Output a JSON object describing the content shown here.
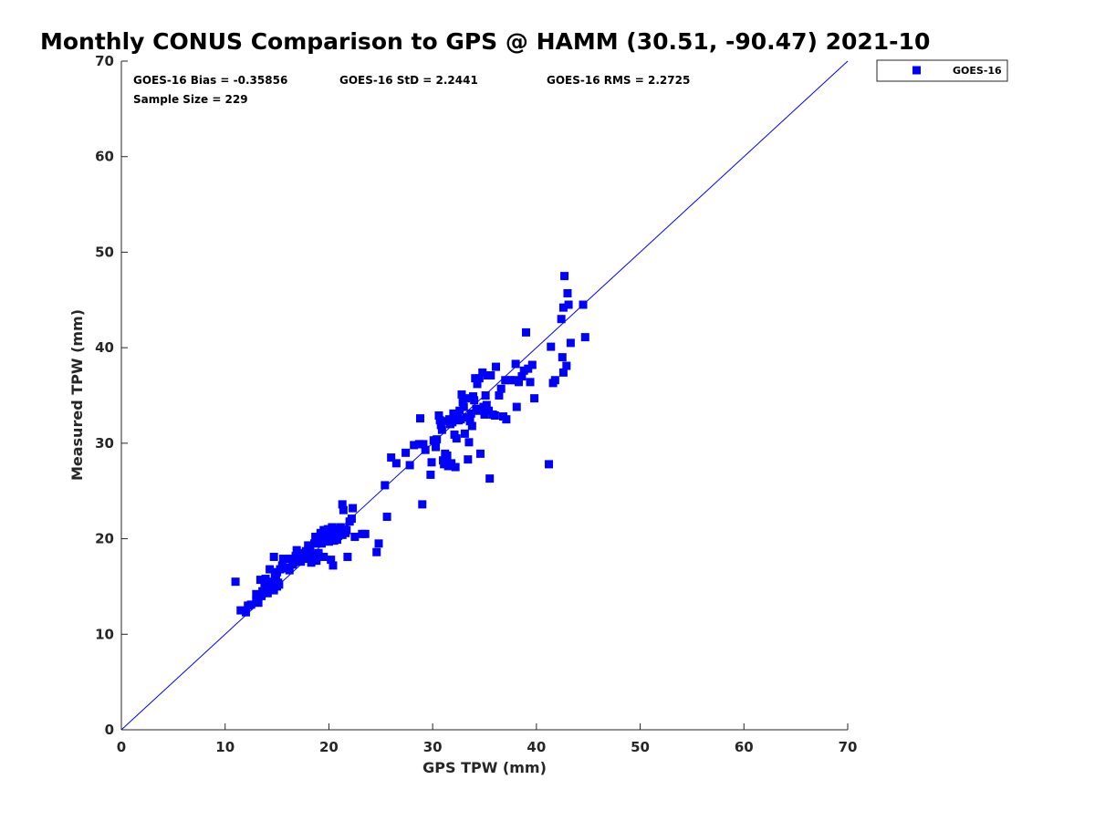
{
  "chart_data": {
    "type": "scatter",
    "title": "Monthly CONUS Comparison to GPS @ HAMM (30.51, -90.47) 2021-10",
    "xlabel": "GPS TPW (mm)",
    "ylabel": "Measured TPW (mm)",
    "xlim": [
      0,
      70
    ],
    "ylim": [
      0,
      70
    ],
    "xticks": [
      0,
      10,
      20,
      30,
      40,
      50,
      60,
      70
    ],
    "yticks": [
      0,
      10,
      20,
      30,
      40,
      50,
      60,
      70
    ],
    "grid": false,
    "legend_position": "top-right, outside plot",
    "reference_line": {
      "x": [
        0,
        70
      ],
      "y": [
        0,
        70
      ],
      "color": "#0000ff"
    },
    "stats": {
      "bias": "GOES-16 Bias = -0.35856",
      "std": "GOES-16 StD = 2.2441",
      "rms": "GOES-16 RMS = 2.2725",
      "sample_size": "Sample Size = 229"
    },
    "series": [
      {
        "name": "GOES-16",
        "color": "#0000ff",
        "marker": "square",
        "points": [
          [
            11.0,
            15.5
          ],
          [
            11.5,
            12.5
          ],
          [
            12.0,
            12.3
          ],
          [
            12.2,
            13.0
          ],
          [
            12.5,
            13.1
          ],
          [
            13.0,
            13.5
          ],
          [
            13.0,
            14.2
          ],
          [
            13.2,
            13.3
          ],
          [
            13.4,
            15.7
          ],
          [
            13.5,
            14.0
          ],
          [
            13.6,
            14.5
          ],
          [
            13.8,
            15.2
          ],
          [
            13.9,
            15.8
          ],
          [
            14.0,
            14.5
          ],
          [
            14.1,
            14.3
          ],
          [
            14.3,
            15.5
          ],
          [
            14.3,
            16.8
          ],
          [
            14.5,
            14.8
          ],
          [
            14.6,
            15.2
          ],
          [
            14.7,
            14.6
          ],
          [
            14.7,
            18.1
          ],
          [
            14.8,
            16.2
          ],
          [
            14.9,
            15.8
          ],
          [
            15.0,
            15.0
          ],
          [
            15.0,
            16.5
          ],
          [
            15.1,
            15.4
          ],
          [
            15.2,
            15.2
          ],
          [
            15.3,
            16.8
          ],
          [
            15.5,
            17.2
          ],
          [
            15.6,
            17.9
          ],
          [
            15.7,
            16.9
          ],
          [
            16.0,
            17.0
          ],
          [
            16.2,
            16.7
          ],
          [
            16.3,
            17.9
          ],
          [
            16.5,
            17.3
          ],
          [
            16.6,
            17.5
          ],
          [
            16.8,
            18.2
          ],
          [
            16.9,
            18.8
          ],
          [
            17.0,
            17.8
          ],
          [
            17.2,
            18.5
          ],
          [
            17.3,
            17.6
          ],
          [
            17.5,
            18.3
          ],
          [
            17.6,
            17.9
          ],
          [
            17.8,
            18.7
          ],
          [
            18.0,
            19.3
          ],
          [
            18.1,
            18.0
          ],
          [
            18.2,
            19.0
          ],
          [
            18.3,
            17.5
          ],
          [
            18.5,
            18.3
          ],
          [
            18.6,
            19.5
          ],
          [
            18.7,
            20.2
          ],
          [
            18.8,
            17.7
          ],
          [
            19.0,
            18.5
          ],
          [
            19.0,
            19.8
          ],
          [
            19.2,
            20.6
          ],
          [
            19.3,
            19.5
          ],
          [
            19.5,
            18.1
          ],
          [
            19.5,
            20.9
          ],
          [
            19.6,
            20.0
          ],
          [
            19.8,
            20.4
          ],
          [
            19.9,
            21.0
          ],
          [
            20.0,
            19.7
          ],
          [
            20.1,
            20.6
          ],
          [
            20.2,
            17.8
          ],
          [
            20.3,
            21.2
          ],
          [
            20.4,
            17.2
          ],
          [
            20.5,
            19.8
          ],
          [
            20.6,
            20.1
          ],
          [
            20.7,
            21.0
          ],
          [
            20.8,
            19.9
          ],
          [
            20.9,
            20.3
          ],
          [
            21.0,
            20.5
          ],
          [
            21.1,
            21.2
          ],
          [
            21.2,
            20.8
          ],
          [
            21.3,
            20.4
          ],
          [
            21.3,
            23.6
          ],
          [
            21.4,
            23.0
          ],
          [
            21.5,
            21.0
          ],
          [
            21.6,
            20.6
          ],
          [
            21.7,
            20.9
          ],
          [
            21.8,
            18.1
          ],
          [
            22.0,
            21.8
          ],
          [
            22.2,
            22.1
          ],
          [
            22.3,
            23.2
          ],
          [
            22.5,
            20.2
          ],
          [
            23.2,
            20.5
          ],
          [
            23.5,
            20.5
          ],
          [
            24.6,
            18.6
          ],
          [
            24.8,
            19.5
          ],
          [
            25.4,
            25.6
          ],
          [
            25.6,
            22.3
          ],
          [
            26.0,
            28.5
          ],
          [
            26.5,
            27.9
          ],
          [
            27.4,
            29.0
          ],
          [
            27.8,
            27.7
          ],
          [
            28.2,
            29.8
          ],
          [
            28.7,
            29.9
          ],
          [
            28.8,
            32.6
          ],
          [
            29.0,
            23.6
          ],
          [
            29.1,
            29.9
          ],
          [
            29.3,
            29.3
          ],
          [
            29.8,
            26.7
          ],
          [
            29.9,
            28.0
          ],
          [
            30.1,
            30.3
          ],
          [
            30.3,
            29.6
          ],
          [
            30.4,
            30.4
          ],
          [
            30.6,
            32.9
          ],
          [
            30.7,
            32.4
          ],
          [
            30.8,
            31.9
          ],
          [
            30.9,
            31.4
          ],
          [
            31.0,
            28.2
          ],
          [
            31.1,
            27.8
          ],
          [
            31.2,
            28.9
          ],
          [
            31.3,
            32.3
          ],
          [
            31.4,
            28.7
          ],
          [
            31.5,
            27.6
          ],
          [
            31.6,
            32.5
          ],
          [
            31.7,
            32.0
          ],
          [
            31.8,
            27.9
          ],
          [
            31.9,
            32.2
          ],
          [
            32.0,
            33.1
          ],
          [
            32.1,
            30.9
          ],
          [
            32.2,
            27.5
          ],
          [
            32.3,
            30.5
          ],
          [
            32.4,
            33.0
          ],
          [
            32.5,
            32.4
          ],
          [
            32.6,
            33.4
          ],
          [
            32.7,
            32.5
          ],
          [
            32.8,
            35.1
          ],
          [
            32.9,
            34.3
          ],
          [
            33.0,
            33.8
          ],
          [
            33.1,
            31.0
          ],
          [
            33.2,
            34.7
          ],
          [
            33.3,
            32.7
          ],
          [
            33.4,
            28.3
          ],
          [
            33.5,
            30.1
          ],
          [
            33.6,
            32.3
          ],
          [
            33.7,
            33.1
          ],
          [
            33.8,
            31.8
          ],
          [
            33.9,
            34.9
          ],
          [
            34.0,
            34.5
          ],
          [
            34.1,
            36.8
          ],
          [
            34.2,
            33.6
          ],
          [
            34.3,
            36.2
          ],
          [
            34.4,
            33.4
          ],
          [
            34.5,
            36.8
          ],
          [
            34.6,
            28.9
          ],
          [
            34.8,
            37.4
          ],
          [
            34.9,
            33.8
          ],
          [
            35.0,
            33.0
          ],
          [
            35.1,
            35.0
          ],
          [
            35.2,
            34.0
          ],
          [
            35.3,
            37.1
          ],
          [
            35.4,
            33.4
          ],
          [
            35.5,
            26.3
          ],
          [
            35.6,
            37.1
          ],
          [
            35.8,
            33.0
          ],
          [
            36.0,
            32.9
          ],
          [
            36.1,
            38.0
          ],
          [
            36.4,
            35.0
          ],
          [
            36.6,
            35.7
          ],
          [
            36.8,
            32.8
          ],
          [
            37.0,
            36.6
          ],
          [
            37.1,
            32.5
          ],
          [
            37.5,
            36.6
          ],
          [
            37.9,
            36.6
          ],
          [
            38.0,
            38.3
          ],
          [
            38.1,
            33.8
          ],
          [
            38.3,
            36.4
          ],
          [
            38.6,
            37.0
          ],
          [
            38.8,
            37.6
          ],
          [
            39.0,
            41.6
          ],
          [
            39.2,
            37.8
          ],
          [
            39.4,
            36.4
          ],
          [
            39.6,
            38.2
          ],
          [
            39.8,
            34.7
          ],
          [
            41.2,
            27.8
          ],
          [
            41.4,
            40.1
          ],
          [
            41.6,
            36.3
          ],
          [
            41.8,
            36.6
          ],
          [
            42.4,
            43.0
          ],
          [
            42.5,
            39.0
          ],
          [
            42.6,
            44.2
          ],
          [
            42.6,
            37.4
          ],
          [
            42.7,
            47.5
          ],
          [
            42.9,
            38.1
          ],
          [
            43.0,
            45.7
          ],
          [
            43.1,
            44.5
          ],
          [
            43.3,
            40.5
          ],
          [
            44.5,
            44.5
          ],
          [
            44.7,
            41.1
          ]
        ]
      }
    ]
  }
}
